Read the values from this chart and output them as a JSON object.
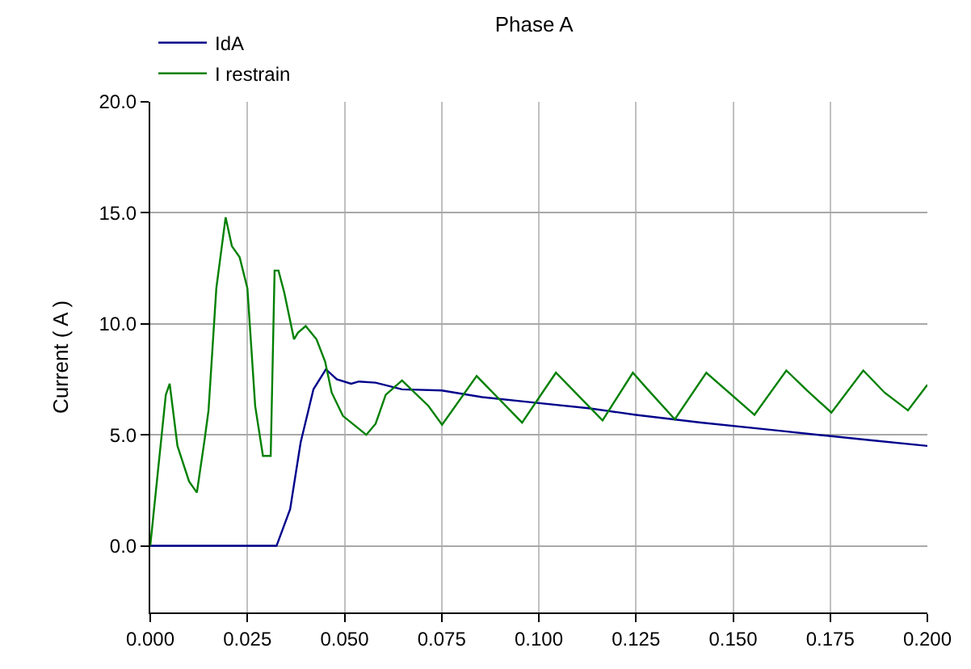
{
  "chart_data": {
    "type": "line",
    "title": "Phase A",
    "ylabel": "Current ( A )",
    "xlim": [
      0,
      0.2
    ],
    "ylim": [
      -3,
      20
    ],
    "xticks": [
      {
        "value": 0,
        "label": "0.000"
      },
      {
        "value": 0.025,
        "label": "0.025"
      },
      {
        "value": 0.05,
        "label": "0.050"
      },
      {
        "value": 0.075,
        "label": "0.075"
      },
      {
        "value": 0.1,
        "label": "0.100"
      },
      {
        "value": 0.125,
        "label": "0.125"
      },
      {
        "value": 0.15,
        "label": "0.150"
      },
      {
        "value": 0.175,
        "label": "0.175"
      },
      {
        "value": 0.2,
        "label": "0.200"
      }
    ],
    "yticks": [
      {
        "value": 0,
        "label": "0.0"
      },
      {
        "value": 5,
        "label": "5.0"
      },
      {
        "value": 10,
        "label": "10.0"
      },
      {
        "value": 15,
        "label": "15.0"
      },
      {
        "value": 20,
        "label": "20.0"
      }
    ],
    "grid": true,
    "legend": "top",
    "marker": "none",
    "line_style": "solid",
    "series": [
      {
        "name": "IdA",
        "color": "#00008b",
        "x": [
          0,
          0.0325,
          0.036,
          0.0387,
          0.042,
          0.0452,
          0.048,
          0.0517,
          0.0537,
          0.058,
          0.0648,
          0.075,
          0.0854,
          0.099,
          0.1128,
          0.125,
          0.1417,
          0.161,
          0.1747,
          0.1857,
          0.2
        ],
        "values": [
          0,
          0,
          1.65,
          4.65,
          7.05,
          7.95,
          7.5,
          7.3,
          7.4,
          7.35,
          7.05,
          7.0,
          6.7,
          6.45,
          6.2,
          5.9,
          5.55,
          5.2,
          4.95,
          4.75,
          4.5
        ]
      },
      {
        "name": "I restrain",
        "color": "#008000",
        "x": [
          0,
          0.004,
          0.005,
          0.007,
          0.01,
          0.012,
          0.014,
          0.015,
          0.017,
          0.0194,
          0.021,
          0.023,
          0.025,
          0.027,
          0.029,
          0.031,
          0.032,
          0.033,
          0.0345,
          0.037,
          0.038,
          0.04,
          0.0428,
          0.045,
          0.0467,
          0.0496,
          0.0556,
          0.058,
          0.0606,
          0.0648,
          0.0716,
          0.0751,
          0.084,
          0.0957,
          0.1044,
          0.1164,
          0.1242,
          0.128,
          0.135,
          0.1431,
          0.1555,
          0.1637,
          0.169,
          0.1753,
          0.1835,
          0.189,
          0.195,
          0.2
        ],
        "values": [
          0,
          6.8,
          7.3,
          4.5,
          2.9,
          2.4,
          4.8,
          6.1,
          11.6,
          14.8,
          13.5,
          13.0,
          11.6,
          6.3,
          4.05,
          4.05,
          12.4,
          12.4,
          11.4,
          9.3,
          9.6,
          9.9,
          9.3,
          8.3,
          6.9,
          5.85,
          5.0,
          5.5,
          6.8,
          7.45,
          6.3,
          5.45,
          7.65,
          5.55,
          7.8,
          5.65,
          7.8,
          7.05,
          5.7,
          7.8,
          5.9,
          7.9,
          7.0,
          6.0,
          7.9,
          6.9,
          6.1,
          7.25
        ]
      }
    ]
  }
}
